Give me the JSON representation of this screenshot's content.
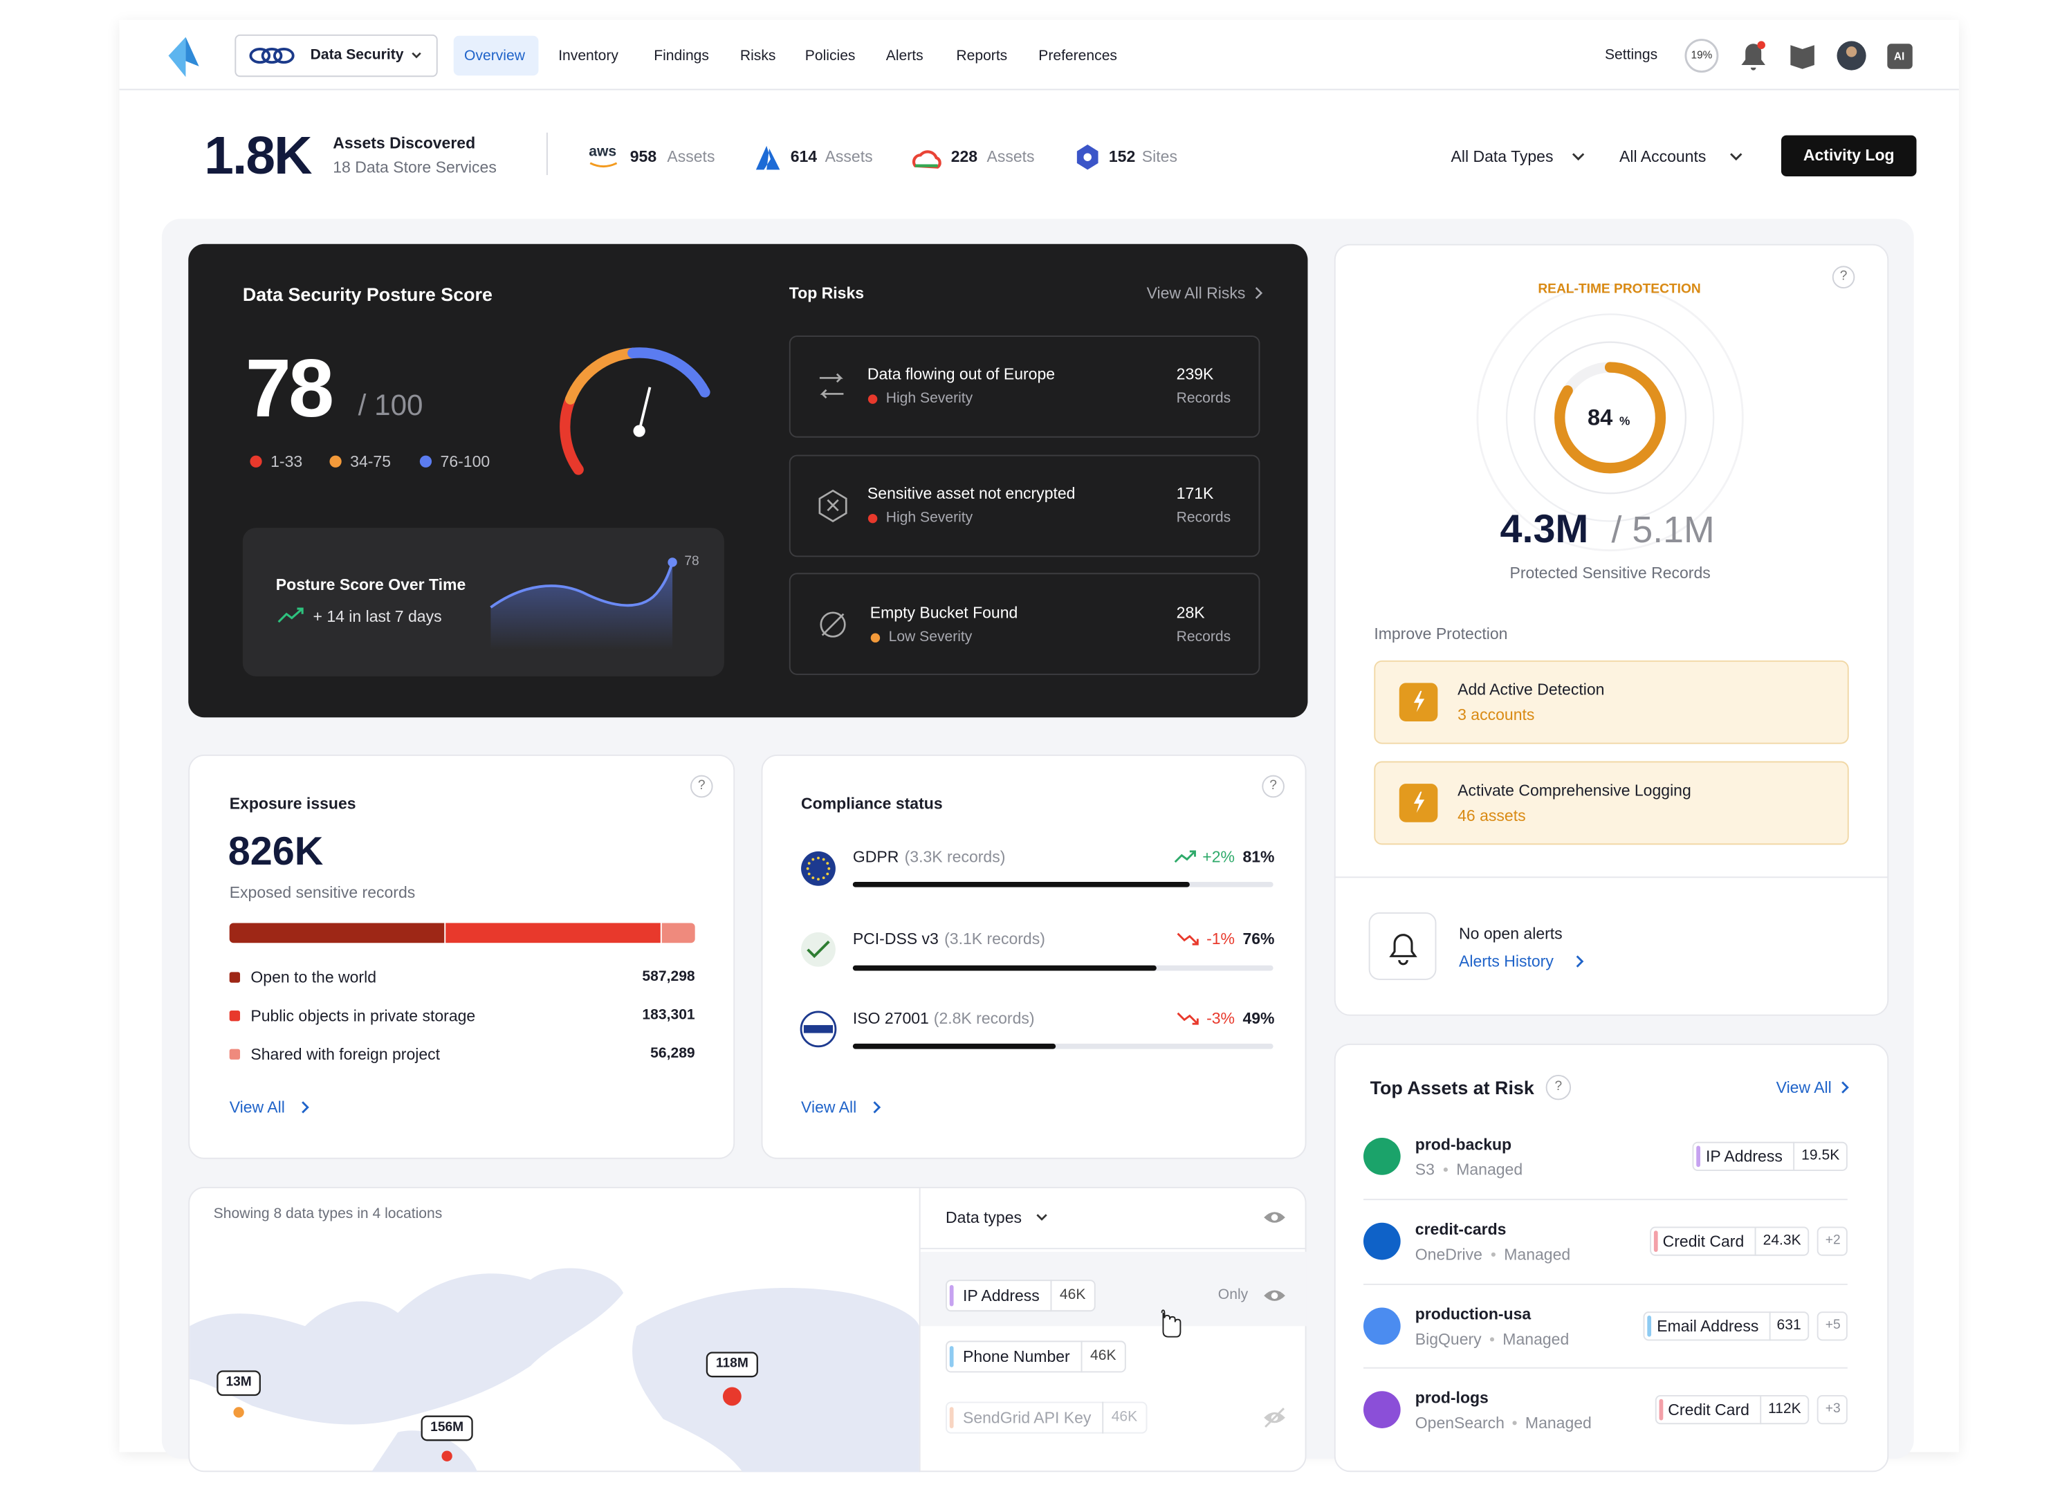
{
  "nav": {
    "product": "Data Security",
    "tabs": [
      "Overview",
      "Inventory",
      "Findings",
      "Risks",
      "Policies",
      "Alerts",
      "Reports",
      "Preferences"
    ],
    "settings": "Settings",
    "progress": "19%",
    "ai": "AI"
  },
  "summary": {
    "total": "1.8K",
    "title": "Assets Discovered",
    "subtitle": "18 Data Store Services",
    "providers": [
      {
        "logo": "aws",
        "count": "958",
        "unit": "Assets"
      },
      {
        "count": "614",
        "unit": "Assets"
      },
      {
        "count": "228",
        "unit": "Assets"
      },
      {
        "count": "152",
        "unit": "Sites"
      }
    ],
    "filters": [
      "All Data Types",
      "All Accounts"
    ],
    "button": "Activity Log"
  },
  "posture": {
    "title": "Data Security Posture Score",
    "score": "78",
    "max": "/ 100",
    "legend": [
      "1-33",
      "34-75",
      "76-100"
    ],
    "over_time": {
      "title": "Posture Score Over Time",
      "change": "+ 14 in last 7 days",
      "end": "78"
    }
  },
  "top_risks": {
    "title": "Top Risks",
    "link": "View All Risks",
    "items": [
      {
        "name": "Data flowing out of Europe",
        "severity": "High Severity",
        "count": "239K",
        "unit": "Records"
      },
      {
        "name": "Sensitive asset not encrypted",
        "severity": "High Severity",
        "count": "171K",
        "unit": "Records"
      },
      {
        "name": "Empty Bucket Found",
        "severity": "Low Severity",
        "count": "28K",
        "unit": "Records"
      }
    ]
  },
  "protection": {
    "label": "REAL-TIME PROTECTION",
    "help": "?",
    "percent": "84",
    "percent_unit": "%",
    "protected": "4.3M",
    "total": "/ 5.1M",
    "caption": "Protected Sensitive Records",
    "improve": "Improve Protection",
    "actions": [
      {
        "title": "Add Active Detection",
        "detail": "3 accounts"
      },
      {
        "title": "Activate Comprehensive Logging",
        "detail": "46 assets"
      }
    ],
    "alerts": {
      "title": "No open alerts",
      "link": "Alerts History"
    }
  },
  "exposure": {
    "title": "Exposure issues",
    "help": "?",
    "total": "826K",
    "caption": "Exposed sensitive records",
    "items": [
      {
        "name": "Open to the world",
        "value": "587,298"
      },
      {
        "name": "Public objects in private storage",
        "value": "183,301"
      },
      {
        "name": "Shared with foreign project",
        "value": "56,289"
      }
    ],
    "link": "View All"
  },
  "compliance": {
    "title": "Compliance status",
    "help": "?",
    "items": [
      {
        "name": "GDPR",
        "detail": "(3.3K records)",
        "change": "+2%",
        "percent": "81%"
      },
      {
        "name": "PCI-DSS v3",
        "detail": "(3.1K records)",
        "change": "-1%",
        "percent": "76%"
      },
      {
        "name": "ISO 27001",
        "detail": "(2.8K records)",
        "change": "-3%",
        "percent": "49%"
      }
    ],
    "link": "View All"
  },
  "top_assets": {
    "title": "Top Assets at Risk",
    "help": "?",
    "link": "View All",
    "items": [
      {
        "name": "prod-backup",
        "source": "S3",
        "mode": "Managed",
        "tag": "IP Address",
        "count": "19.5K",
        "extra": null
      },
      {
        "name": "credit-cards",
        "source": "OneDrive",
        "mode": "Managed",
        "tag": "Credit Card",
        "count": "24.3K",
        "extra": "+2"
      },
      {
        "name": "production-usa",
        "source": "BigQuery",
        "mode": "Managed",
        "tag": "Email Address",
        "count": "631",
        "extra": "+5"
      },
      {
        "name": "prod-logs",
        "source": "OpenSearch",
        "mode": "Managed",
        "tag": "Credit Card",
        "count": "112K",
        "extra": "+3"
      }
    ]
  },
  "map": {
    "caption": "Showing 8 data types in 4 locations",
    "filter": "Data types",
    "only": "Only",
    "bubbles": [
      "13M",
      "156M",
      "118M"
    ],
    "types": [
      {
        "name": "IP Address",
        "count": "46K"
      },
      {
        "name": "Phone Number",
        "count": "46K"
      },
      {
        "name": "SendGrid API Key",
        "count": "46K"
      }
    ]
  }
}
